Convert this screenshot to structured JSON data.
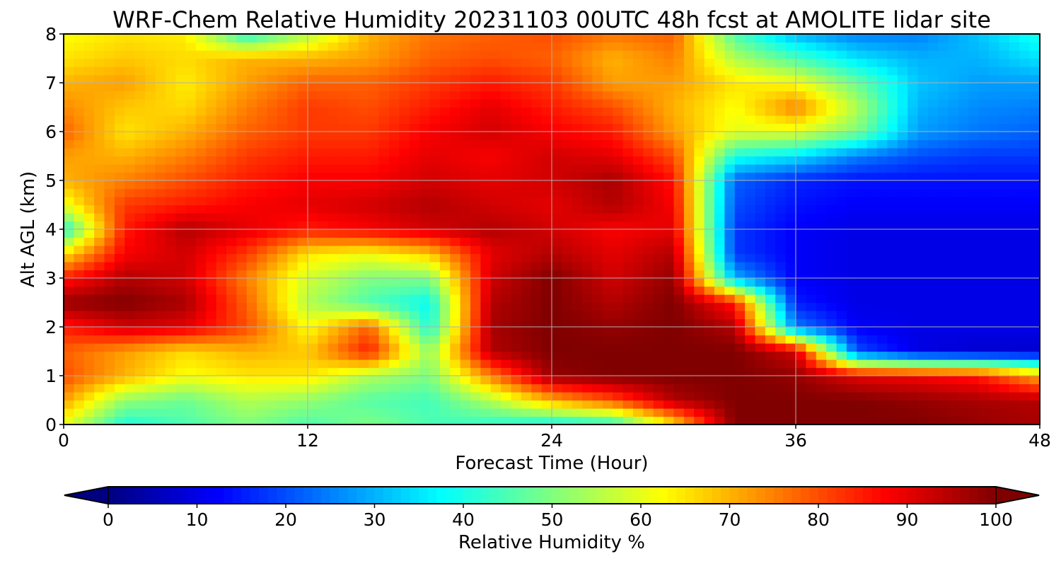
{
  "chart_data": {
    "type": "heatmap",
    "title": "WRF-Chem Relative Humidity 20231103 00UTC 48h fcst at AMOLITE lidar site",
    "xlabel": "Forecast Time (Hour)",
    "ylabel": "Alt AGL (km)",
    "xlim": [
      0,
      48
    ],
    "ylim": [
      0,
      8
    ],
    "xticks": [
      "0",
      "12",
      "24",
      "36",
      "48"
    ],
    "yticks": [
      "0",
      "1",
      "2",
      "3",
      "4",
      "5",
      "6",
      "7",
      "8"
    ],
    "grid": true,
    "colorbar": {
      "label": "Relative Humidity %",
      "range": [
        0,
        100
      ],
      "ticks": [
        "0",
        "10",
        "20",
        "30",
        "40",
        "50",
        "60",
        "70",
        "80",
        "90",
        "100"
      ],
      "extend": "both",
      "colormap": "jet"
    },
    "x": [
      0,
      3,
      6,
      9,
      12,
      15,
      18,
      21,
      24,
      27,
      30,
      33,
      36,
      39,
      42,
      45,
      48
    ],
    "y": [
      0,
      0.5,
      1,
      1.5,
      2,
      2.5,
      3,
      3.5,
      4,
      4.5,
      5,
      5.5,
      6,
      6.5,
      7,
      7.5,
      8
    ],
    "z": [
      [
        60,
        40,
        45,
        50,
        45,
        50,
        45,
        42,
        38,
        40,
        65,
        100,
        100,
        100,
        100,
        98,
        96
      ],
      [
        72,
        52,
        48,
        55,
        52,
        46,
        44,
        55,
        70,
        80,
        95,
        100,
        100,
        100,
        98,
        96,
        95
      ],
      [
        80,
        70,
        62,
        65,
        65,
        55,
        50,
        75,
        98,
        100,
        100,
        100,
        98,
        90,
        88,
        85,
        70
      ],
      [
        78,
        72,
        66,
        70,
        68,
        85,
        52,
        95,
        100,
        100,
        100,
        100,
        92,
        20,
        10,
        8,
        8
      ],
      [
        85,
        92,
        90,
        80,
        62,
        78,
        40,
        96,
        100,
        98,
        100,
        95,
        25,
        12,
        10,
        10,
        10
      ],
      [
        98,
        100,
        96,
        78,
        55,
        45,
        38,
        95,
        100,
        95,
        100,
        85,
        15,
        10,
        10,
        10,
        10
      ],
      [
        85,
        95,
        92,
        75,
        58,
        50,
        50,
        92,
        100,
        92,
        98,
        30,
        12,
        10,
        10,
        10,
        10
      ],
      [
        65,
        88,
        92,
        82,
        65,
        62,
        68,
        90,
        95,
        90,
        95,
        18,
        12,
        10,
        10,
        10,
        10
      ],
      [
        40,
        85,
        95,
        90,
        85,
        88,
        92,
        95,
        92,
        88,
        90,
        18,
        12,
        10,
        10,
        10,
        10
      ],
      [
        60,
        82,
        85,
        88,
        90,
        92,
        95,
        92,
        90,
        95,
        88,
        20,
        14,
        12,
        12,
        12,
        12
      ],
      [
        70,
        75,
        80,
        85,
        88,
        88,
        92,
        90,
        92,
        96,
        86,
        22,
        16,
        14,
        14,
        14,
        14
      ],
      [
        72,
        70,
        75,
        82,
        85,
        85,
        90,
        88,
        92,
        90,
        80,
        40,
        35,
        25,
        20,
        18,
        18
      ],
      [
        78,
        65,
        70,
        78,
        82,
        82,
        88,
        92,
        88,
        85,
        72,
        60,
        60,
        50,
        28,
        24,
        22
      ],
      [
        74,
        68,
        66,
        75,
        82,
        80,
        85,
        90,
        85,
        80,
        70,
        62,
        75,
        55,
        30,
        26,
        25
      ],
      [
        70,
        72,
        64,
        72,
        78,
        78,
        82,
        85,
        82,
        72,
        72,
        65,
        62,
        48,
        32,
        28,
        28
      ],
      [
        65,
        68,
        66,
        70,
        70,
        72,
        78,
        80,
        78,
        70,
        75,
        55,
        45,
        35,
        30,
        30,
        35
      ],
      [
        62,
        65,
        64,
        40,
        55,
        70,
        76,
        78,
        80,
        76,
        78,
        45,
        30,
        25,
        25,
        32,
        40
      ]
    ]
  }
}
